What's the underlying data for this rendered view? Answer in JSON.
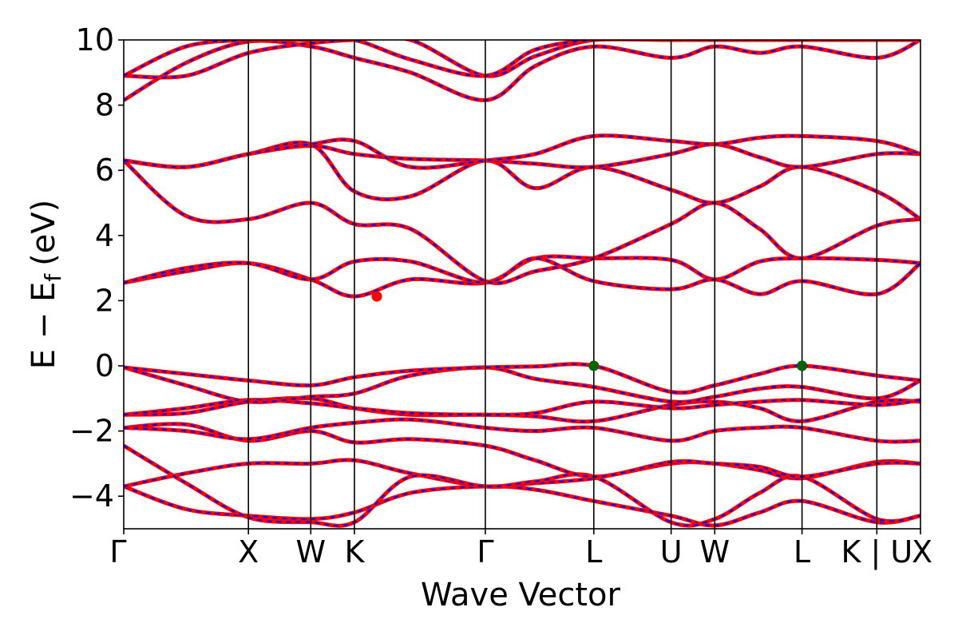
{
  "chart_data": {
    "type": "line",
    "title": "",
    "xlabel": "Wave Vector",
    "ylabel": "E − E",
    "ylabel_subscript": "f",
    "ylabel_unit": "(eV)",
    "ylim": [
      -5,
      10
    ],
    "yticks": [
      -4,
      -2,
      0,
      2,
      4,
      6,
      8,
      10
    ],
    "ytick_labels": [
      "−4",
      "−2",
      "0",
      "2",
      "4",
      "6",
      "8",
      "10"
    ],
    "kpath": {
      "labels": [
        "Γ",
        "X",
        "W",
        "K",
        "Γ",
        "L",
        "U",
        "W",
        "L",
        "K | U",
        "X"
      ],
      "positions": [
        0,
        1.0,
        1.5,
        1.85,
        2.9,
        3.77,
        4.39,
        4.74,
        5.44,
        6.04,
        6.39
      ]
    },
    "series_colors": {
      "primary": "#ff0000",
      "overlay": "#0000ff"
    },
    "grid": false,
    "markers": [
      {
        "name": "CBM",
        "x": 2.03,
        "y": 2.13,
        "color": "#ff0000"
      },
      {
        "name": "VBM-L1",
        "x": 3.77,
        "y": 0.0,
        "color": "#006400"
      },
      {
        "name": "VBM-L2",
        "x": 5.44,
        "y": 0.0,
        "color": "#006400"
      }
    ],
    "bands": [
      {
        "x": [
          0,
          0.5,
          1.0,
          1.5,
          1.85,
          2.3,
          2.9,
          3.3,
          3.77,
          4.39,
          4.74,
          5.1,
          5.44,
          6.04,
          6.39
        ],
        "y": [
          -3.7,
          -4.4,
          -4.6,
          -4.7,
          -4.5,
          -3.9,
          -3.7,
          -3.8,
          -4.15,
          -4.6,
          -4.9,
          -4.5,
          -4.15,
          -4.8,
          -4.6
        ]
      },
      {
        "x": [
          0,
          0.5,
          1.0,
          1.5,
          1.85,
          2.3,
          2.9,
          3.3,
          3.77,
          4.39,
          4.74,
          5.1,
          5.44,
          6.04,
          6.39
        ],
        "y": [
          -3.7,
          -3.3,
          -3.0,
          -3.0,
          -2.9,
          -3.3,
          -3.7,
          -3.6,
          -3.45,
          -3.0,
          -3.0,
          -3.2,
          -3.45,
          -2.95,
          -3.0
        ]
      },
      {
        "x": [
          0,
          0.5,
          1.0,
          1.5,
          1.85,
          2.3,
          2.9,
          3.3,
          3.77,
          4.39,
          4.74,
          5.1,
          5.44,
          6.04,
          6.39
        ],
        "y": [
          -2.45,
          -3.6,
          -4.65,
          -4.8,
          -4.8,
          -3.4,
          -3.7,
          -3.55,
          -3.4,
          -4.8,
          -4.7,
          -3.9,
          -3.4,
          -4.7,
          -4.6
        ]
      },
      {
        "x": [
          0,
          0.5,
          1.0,
          1.5,
          1.85,
          2.3,
          2.9,
          3.3,
          3.77,
          4.39,
          4.74,
          5.1,
          5.44,
          6.04,
          6.39
        ],
        "y": [
          -1.9,
          -1.8,
          -2.3,
          -2.0,
          -2.35,
          -2.25,
          -2.45,
          -2.9,
          -3.4,
          -2.95,
          -3.0,
          -3.1,
          -3.4,
          -3.0,
          -3.0
        ]
      },
      {
        "x": [
          0,
          0.5,
          1.0,
          1.5,
          1.85,
          2.3,
          2.9,
          3.3,
          3.77,
          4.39,
          4.74,
          5.1,
          5.44,
          6.04,
          6.39
        ],
        "y": [
          -1.9,
          -2.0,
          -2.25,
          -1.9,
          -1.75,
          -1.65,
          -1.9,
          -2.0,
          -1.9,
          -2.3,
          -2.0,
          -1.9,
          -1.9,
          -2.3,
          -2.3
        ]
      },
      {
        "x": [
          0,
          0.5,
          1.0,
          1.5,
          1.85,
          2.3,
          2.9,
          3.3,
          3.77,
          4.39,
          4.74,
          5.1,
          5.44,
          6.04,
          6.39
        ],
        "y": [
          -1.5,
          -1.45,
          -1.1,
          -1.0,
          -1.3,
          -1.5,
          -1.5,
          -1.55,
          -1.7,
          -1.2,
          -1.1,
          -1.3,
          -1.7,
          -1.1,
          -1.1
        ]
      },
      {
        "x": [
          0,
          0.5,
          1.0,
          1.5,
          1.85,
          2.3,
          2.9,
          3.3,
          3.77,
          4.39,
          4.74,
          5.1,
          5.44,
          6.04,
          6.39
        ],
        "y": [
          -1.5,
          -1.3,
          -1.05,
          -1.15,
          -1.3,
          -1.45,
          -1.5,
          -1.45,
          -1.1,
          -1.3,
          -1.2,
          -1.1,
          -1.05,
          -1.2,
          -1.05
        ]
      },
      {
        "x": [
          0,
          0.5,
          1.0,
          1.5,
          1.85,
          2.3,
          2.9,
          3.3,
          3.77,
          4.39,
          4.74,
          5.1,
          5.44,
          6.04,
          6.39
        ],
        "y": [
          -0.05,
          -0.6,
          -1.1,
          -0.95,
          -0.85,
          -0.3,
          -0.05,
          -0.4,
          -0.65,
          -1.1,
          -0.95,
          -0.7,
          -0.65,
          -1.0,
          -0.45
        ]
      },
      {
        "x": [
          0,
          0.5,
          1.0,
          1.5,
          1.85,
          2.3,
          2.9,
          3.3,
          3.77,
          4.39,
          4.74,
          5.1,
          5.44,
          6.04,
          6.39
        ],
        "y": [
          -0.05,
          -0.25,
          -0.45,
          -0.6,
          -0.35,
          -0.15,
          -0.05,
          -0.02,
          0.0,
          -0.8,
          -0.6,
          -0.25,
          0.0,
          -0.3,
          -0.45
        ]
      },
      {
        "x": [
          0,
          0.5,
          1.0,
          1.5,
          1.85,
          2.3,
          2.9,
          3.3,
          3.77,
          4.39,
          4.74,
          5.1,
          5.44,
          6.04,
          6.39
        ],
        "y": [
          2.55,
          2.9,
          3.15,
          2.65,
          2.13,
          2.65,
          2.55,
          3.3,
          3.3,
          3.25,
          2.65,
          3.2,
          3.3,
          3.25,
          3.15
        ]
      },
      {
        "x": [
          0,
          0.5,
          1.0,
          1.5,
          1.85,
          2.3,
          2.9,
          3.3,
          3.77,
          4.39,
          4.74,
          5.1,
          5.44,
          6.04,
          6.39
        ],
        "y": [
          2.55,
          3.0,
          3.15,
          2.65,
          3.2,
          3.2,
          2.55,
          3.3,
          2.6,
          2.35,
          2.65,
          2.2,
          2.6,
          2.2,
          3.15
        ]
      },
      {
        "x": [
          0,
          0.5,
          1.0,
          1.5,
          1.85,
          2.3,
          2.9,
          3.3,
          3.77,
          4.39,
          4.74,
          5.1,
          5.44,
          6.04,
          6.39
        ],
        "y": [
          6.3,
          4.6,
          4.5,
          5.0,
          4.35,
          4.2,
          2.6,
          2.9,
          3.3,
          4.35,
          5.0,
          4.2,
          3.3,
          4.3,
          4.5
        ]
      },
      {
        "x": [
          0,
          0.5,
          1.0,
          1.5,
          1.85,
          2.3,
          2.9,
          3.3,
          3.77,
          4.39,
          4.74,
          5.1,
          5.44,
          6.04,
          6.39
        ],
        "y": [
          6.3,
          6.1,
          6.5,
          6.8,
          5.35,
          5.2,
          6.3,
          5.45,
          6.1,
          5.4,
          5.0,
          5.5,
          6.1,
          5.35,
          4.5
        ]
      },
      {
        "x": [
          0,
          0.5,
          1.0,
          1.5,
          1.85,
          2.3,
          2.9,
          3.3,
          3.77,
          4.39,
          4.74,
          5.1,
          5.44,
          6.04,
          6.39
        ],
        "y": [
          6.3,
          6.1,
          6.5,
          6.75,
          6.5,
          6.35,
          6.3,
          6.2,
          6.1,
          6.5,
          6.8,
          6.4,
          6.1,
          6.5,
          6.5
        ]
      },
      {
        "x": [
          0,
          0.5,
          1.0,
          1.5,
          1.85,
          2.3,
          2.9,
          3.3,
          3.77,
          4.39,
          4.74,
          5.1,
          5.44,
          6.04,
          6.39
        ],
        "y": [
          6.3,
          6.1,
          6.5,
          6.8,
          6.9,
          6.1,
          6.3,
          6.5,
          7.05,
          6.9,
          6.8,
          7.0,
          7.05,
          6.9,
          6.5
        ]
      },
      {
        "x": [
          0,
          0.5,
          1.0,
          1.5,
          1.85,
          2.3,
          2.9,
          3.3,
          3.77,
          4.39,
          4.74,
          5.1,
          5.44,
          6.04,
          6.39
        ],
        "y": [
          8.15,
          9.3,
          9.95,
          9.8,
          9.45,
          9.0,
          8.15,
          9.2,
          9.8,
          9.45,
          9.8,
          9.6,
          9.8,
          9.45,
          10.0
        ]
      },
      {
        "x": [
          0,
          0.5,
          1.0,
          1.5,
          1.85,
          2.3,
          2.9,
          3.3,
          3.77,
          4.39,
          4.74,
          5.1,
          5.44,
          6.04,
          6.39
        ],
        "y": [
          8.9,
          8.9,
          9.6,
          9.9,
          10.0,
          10.0,
          8.9,
          9.5,
          10.0,
          10.0,
          10.0,
          10.0,
          10.0,
          10.0,
          10.0
        ]
      },
      {
        "x": [
          0,
          0.5,
          1.0,
          1.5,
          1.85,
          2.3,
          2.9,
          3.3,
          3.77,
          4.39,
          4.74,
          5.1,
          5.44,
          6.04,
          6.39
        ],
        "y": [
          8.9,
          9.8,
          10.0,
          10.0,
          10.0,
          9.4,
          8.9,
          9.7,
          10.0,
          10.0,
          10.0,
          10.0,
          10.0,
          10.0,
          10.0
        ]
      }
    ]
  }
}
